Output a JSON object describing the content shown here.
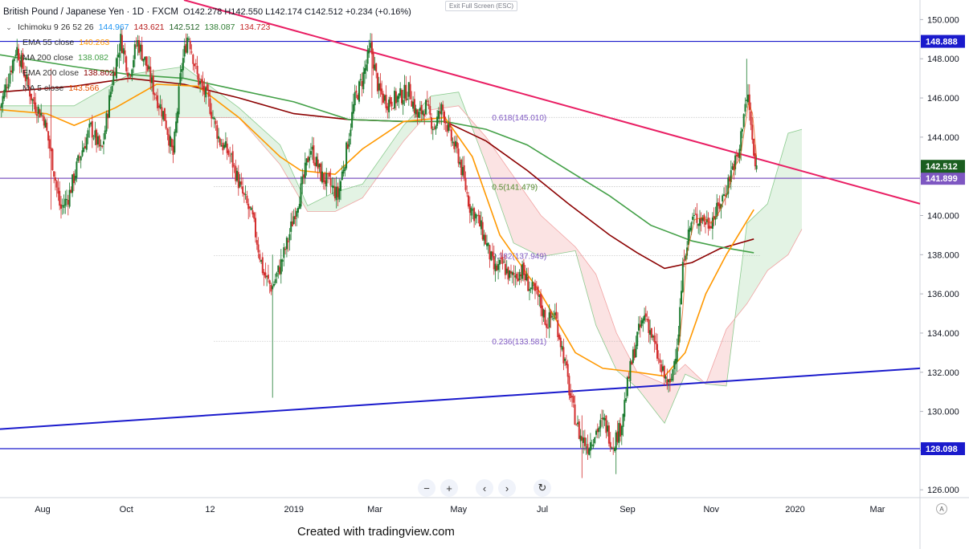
{
  "header": {
    "title": "British Pound / Japanese Yen · 1D · FXCM",
    "ohlc": "O142.278 H142.550 L142.174 C142.512 +0.234 (+0.16%)"
  },
  "indicators": [
    {
      "label": "Ichimoku 9 26 52 26",
      "values": [
        {
          "text": "144.967",
          "color": "#2196f3"
        },
        {
          "text": "143.621",
          "color": "#b71c1c"
        },
        {
          "text": "142.512",
          "color": "#1b5e20"
        },
        {
          "text": "138.087",
          "color": "#2e7d32"
        },
        {
          "text": "134.723",
          "color": "#c62828"
        }
      ]
    },
    {
      "label": "EMA 55 close",
      "values": [
        {
          "text": "140.263",
          "color": "#ff9800"
        }
      ]
    },
    {
      "label": "MA 200 close",
      "values": [
        {
          "text": "138.082",
          "color": "#43a047"
        }
      ]
    },
    {
      "label": "EMA 200 close",
      "values": [
        {
          "text": "138.802",
          "color": "#8b0000"
        }
      ]
    },
    {
      "label": "MA 5 close",
      "values": [
        {
          "text": "143.566",
          "color": "#e65100"
        }
      ]
    }
  ],
  "exit_label": "Exit Full Screen (ESC)",
  "watermark": "Created with tradingview.com",
  "corner_label": "A",
  "nav_icons": [
    "minus-icon",
    "plus-icon",
    "chevron-left-icon",
    "chevron-right-icon",
    "reset-icon"
  ],
  "nav_glyphs": [
    "−",
    "+",
    "‹",
    "›",
    "↻"
  ],
  "chart_data": {
    "type": "candlestick",
    "symbol": "GBPJPY",
    "ylim": [
      125.6,
      151.0
    ],
    "y_ticks": [
      126,
      128,
      130,
      132,
      134,
      136,
      138,
      140,
      142,
      144,
      146,
      148,
      150
    ],
    "y_tick_labels": [
      "126.000",
      "128.000",
      "130.000",
      "132.000",
      "134.000",
      "136.000",
      "138.000",
      "140.000",
      "142.000",
      "144.000",
      "146.000",
      "148.000",
      "150.000"
    ],
    "x_ticks": [
      {
        "label": "Aug",
        "day": 37
      },
      {
        "label": "Oct",
        "day": 98
      },
      {
        "label": "12",
        "day": 159
      },
      {
        "label": "2019",
        "day": 220
      },
      {
        "label": "Mar",
        "day": 279
      },
      {
        "label": "May",
        "day": 340
      },
      {
        "label": "Jul",
        "day": 401
      },
      {
        "label": "Sep",
        "day": 463
      },
      {
        "label": "Nov",
        "day": 524
      },
      {
        "label": "2020",
        "day": 585
      },
      {
        "label": "Mar",
        "day": 645
      }
    ],
    "day_range": [
      6,
      676
    ],
    "last_day": 533,
    "price_path": [
      [
        6,
        145.5
      ],
      [
        12,
        147.0
      ],
      [
        18,
        148.6
      ],
      [
        24,
        147.2
      ],
      [
        30,
        145.8
      ],
      [
        38,
        145.0
      ],
      [
        44,
        142.8
      ],
      [
        50,
        140.3
      ],
      [
        56,
        141.0
      ],
      [
        64,
        143.0
      ],
      [
        72,
        144.5
      ],
      [
        80,
        143.2
      ],
      [
        88,
        147.0
      ],
      [
        94,
        149.0
      ],
      [
        100,
        147.2
      ],
      [
        106,
        148.9
      ],
      [
        112,
        147.8
      ],
      [
        118,
        146.4
      ],
      [
        126,
        145.0
      ],
      [
        132,
        143.0
      ],
      [
        138,
        147.5
      ],
      [
        143,
        149.3
      ],
      [
        150,
        147.0
      ],
      [
        158,
        145.8
      ],
      [
        166,
        143.8
      ],
      [
        174,
        143.0
      ],
      [
        182,
        141.2
      ],
      [
        190,
        139.8
      ],
      [
        198,
        137.0
      ],
      [
        204,
        136.3
      ],
      [
        210,
        137.4
      ],
      [
        216,
        138.8
      ],
      [
        220,
        140.0
      ],
      [
        226,
        141.5
      ],
      [
        232,
        143.5
      ],
      [
        240,
        142.0
      ],
      [
        246,
        141.6
      ],
      [
        252,
        141.0
      ],
      [
        258,
        143.2
      ],
      [
        264,
        145.8
      ],
      [
        270,
        147.0
      ],
      [
        276,
        148.6
      ],
      [
        282,
        146.3
      ],
      [
        288,
        145.8
      ],
      [
        296,
        146.0
      ],
      [
        304,
        146.4
      ],
      [
        310,
        145.0
      ],
      [
        316,
        145.6
      ],
      [
        322,
        144.5
      ],
      [
        328,
        145.5
      ],
      [
        334,
        144.0
      ],
      [
        340,
        143.0
      ],
      [
        348,
        140.5
      ],
      [
        354,
        139.8
      ],
      [
        360,
        138.6
      ],
      [
        366,
        137.2
      ],
      [
        372,
        137.5
      ],
      [
        378,
        136.8
      ],
      [
        386,
        137.2
      ],
      [
        392,
        136.3
      ],
      [
        398,
        135.8
      ],
      [
        404,
        134.5
      ],
      [
        410,
        135.0
      ],
      [
        416,
        133.0
      ],
      [
        422,
        130.5
      ],
      [
        428,
        128.8
      ],
      [
        434,
        128.2
      ],
      [
        440,
        129.0
      ],
      [
        446,
        129.5
      ],
      [
        452,
        128.3
      ],
      [
        458,
        129.2
      ],
      [
        464,
        131.8
      ],
      [
        470,
        133.8
      ],
      [
        476,
        135.0
      ],
      [
        482,
        133.5
      ],
      [
        488,
        132.0
      ],
      [
        494,
        131.2
      ],
      [
        500,
        134.0
      ],
      [
        504,
        138.0
      ],
      [
        510,
        139.8
      ],
      [
        516,
        139.9
      ],
      [
        522,
        139.6
      ],
      [
        528,
        140.2
      ],
      [
        534,
        141.2
      ],
      [
        540,
        142.6
      ],
      [
        544,
        143.0
      ],
      [
        548,
        145.6
      ],
      [
        551,
        146.0
      ],
      [
        554,
        143.7
      ],
      [
        556,
        142.3
      ],
      [
        557,
        142.5
      ]
    ],
    "spikes": [
      {
        "day": 43,
        "high": 147.5,
        "low": 140.3
      },
      {
        "day": 204,
        "high": 138.0,
        "low": 130.7
      },
      {
        "day": 277,
        "high": 148.9,
        "low": 146.0
      },
      {
        "day": 430,
        "high": 129.8,
        "low": 126.6
      },
      {
        "day": 455,
        "high": 129.0,
        "low": 126.8
      },
      {
        "day": 550,
        "high": 148.0,
        "low": 145.5
      }
    ],
    "series": {
      "ema55": {
        "color": "#ff9800",
        "points": [
          [
            6,
            145.4
          ],
          [
            40,
            145.2
          ],
          [
            60,
            144.6
          ],
          [
            90,
            145.5
          ],
          [
            120,
            146.7
          ],
          [
            150,
            146.6
          ],
          [
            180,
            145.0
          ],
          [
            210,
            143.0
          ],
          [
            225,
            142.3
          ],
          [
            250,
            142.1
          ],
          [
            270,
            143.4
          ],
          [
            300,
            144.8
          ],
          [
            330,
            145.0
          ],
          [
            350,
            143.0
          ],
          [
            370,
            139.0
          ],
          [
            400,
            136.0
          ],
          [
            425,
            133.0
          ],
          [
            445,
            132.2
          ],
          [
            470,
            132.0
          ],
          [
            490,
            131.8
          ],
          [
            505,
            133.0
          ],
          [
            520,
            136.0
          ],
          [
            535,
            138.0
          ],
          [
            555,
            140.3
          ]
        ]
      },
      "ma200": {
        "color": "#43a047",
        "points": [
          [
            6,
            148.2
          ],
          [
            60,
            147.6
          ],
          [
            100,
            147.2
          ],
          [
            140,
            147.0
          ],
          [
            180,
            146.4
          ],
          [
            220,
            145.8
          ],
          [
            260,
            144.9
          ],
          [
            300,
            144.8
          ],
          [
            330,
            144.8
          ],
          [
            360,
            144.4
          ],
          [
            390,
            143.6
          ],
          [
            420,
            142.3
          ],
          [
            450,
            141.0
          ],
          [
            480,
            139.5
          ],
          [
            510,
            138.7
          ],
          [
            530,
            138.4
          ],
          [
            555,
            138.1
          ]
        ]
      },
      "ema200": {
        "color": "#8b0000",
        "points": [
          [
            6,
            146.3
          ],
          [
            60,
            146.6
          ],
          [
            100,
            147.0
          ],
          [
            140,
            146.7
          ],
          [
            180,
            146.0
          ],
          [
            220,
            145.2
          ],
          [
            260,
            144.9
          ],
          [
            300,
            144.8
          ],
          [
            330,
            144.8
          ],
          [
            360,
            143.8
          ],
          [
            390,
            142.3
          ],
          [
            420,
            140.6
          ],
          [
            450,
            139.0
          ],
          [
            470,
            138.1
          ],
          [
            490,
            137.3
          ],
          [
            510,
            137.6
          ],
          [
            530,
            138.3
          ],
          [
            555,
            138.8
          ]
        ]
      },
      "ichimoku_span_a": {
        "color": "#81c784",
        "points": [
          [
            6,
            145.6
          ],
          [
            60,
            145.6
          ],
          [
            100,
            147.2
          ],
          [
            140,
            147.6
          ],
          [
            180,
            145.5
          ],
          [
            210,
            143.6
          ],
          [
            230,
            140.5
          ],
          [
            250,
            141.2
          ],
          [
            270,
            141.6
          ],
          [
            300,
            144.6
          ],
          [
            320,
            146.1
          ],
          [
            340,
            146.3
          ],
          [
            360,
            142.6
          ],
          [
            380,
            138.6
          ],
          [
            400,
            137.9
          ],
          [
            425,
            138.2
          ],
          [
            440,
            134.4
          ],
          [
            455,
            132.1
          ],
          [
            470,
            131.2
          ],
          [
            490,
            129.4
          ],
          [
            505,
            131.9
          ],
          [
            520,
            131.4
          ],
          [
            535,
            131.3
          ],
          [
            550,
            139.6
          ],
          [
            565,
            140.6
          ],
          [
            580,
            144.2
          ],
          [
            590,
            144.4
          ]
        ]
      },
      "ichimoku_span_b": {
        "color": "#ef9a9a",
        "points": [
          [
            6,
            145.0
          ],
          [
            60,
            145.0
          ],
          [
            100,
            145.0
          ],
          [
            140,
            145.0
          ],
          [
            180,
            145.0
          ],
          [
            210,
            142.6
          ],
          [
            230,
            140.2
          ],
          [
            250,
            140.2
          ],
          [
            270,
            140.9
          ],
          [
            300,
            143.8
          ],
          [
            320,
            145.4
          ],
          [
            340,
            145.6
          ],
          [
            360,
            144.0
          ],
          [
            380,
            142.0
          ],
          [
            400,
            140.0
          ],
          [
            425,
            138.4
          ],
          [
            440,
            137.0
          ],
          [
            455,
            134.0
          ],
          [
            470,
            132.0
          ],
          [
            490,
            131.4
          ],
          [
            505,
            132.4
          ],
          [
            520,
            131.4
          ],
          [
            535,
            134.2
          ],
          [
            550,
            135.5
          ],
          [
            565,
            137.2
          ],
          [
            580,
            138.0
          ],
          [
            590,
            139.3
          ]
        ]
      }
    },
    "trendlines": [
      {
        "name": "descending-trendline",
        "color": "#e91e63",
        "from": {
          "day": 140,
          "price": 151.0
        },
        "to": {
          "day": 676,
          "price": 140.6
        }
      },
      {
        "name": "ascending-trendline",
        "color": "#1a1acc",
        "from": {
          "day": 6,
          "price": 129.1
        },
        "to": {
          "day": 676,
          "price": 132.2
        }
      }
    ],
    "hlines": [
      {
        "name": "resistance-148888",
        "price": 148.888,
        "color": "#1a1acc",
        "label": "148.888"
      },
      {
        "name": "support-128098",
        "price": 128.098,
        "color": "#1a1acc",
        "label": "128.098"
      },
      {
        "name": "level-141899",
        "price": 141.899,
        "color": "#7e57c2",
        "label": "141.899"
      }
    ],
    "price_badges": [
      {
        "price": 142.512,
        "color": "#1b5e20",
        "label": "142.512"
      }
    ],
    "fib_levels": [
      {
        "label": "0.618(145.010)",
        "price": 145.01,
        "color": "#7e57c2",
        "day": 355
      },
      {
        "label": "0.5(141.479)",
        "price": 141.479,
        "color": "#558b2f",
        "day": 355
      },
      {
        "label": "0.382(137.949)",
        "price": 137.949,
        "color": "#7e57c2",
        "day": 355
      },
      {
        "label": "0.236(133.581)",
        "price": 133.581,
        "color": "#7e57c2",
        "day": 355
      }
    ]
  }
}
